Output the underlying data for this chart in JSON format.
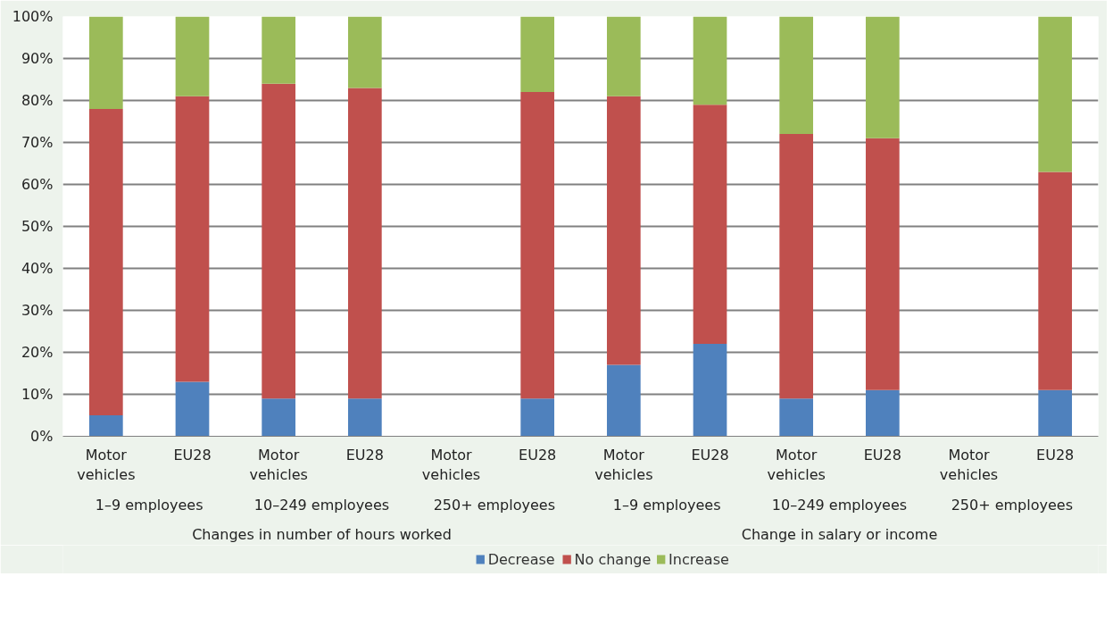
{
  "chart_data": {
    "type": "bar",
    "stacked": true,
    "categories": [
      "Motor vehicles",
      "EU28",
      "Motor vehicles",
      "EU28",
      "Motor vehicles",
      "EU28",
      "Motor vehicles",
      "EU28",
      "Motor vehicles",
      "EU28",
      "Motor vehicles",
      "EU28"
    ],
    "series": [
      {
        "name": "Decrease",
        "color": "#4f81bd",
        "values": [
          5,
          13,
          9,
          9,
          null,
          9,
          17,
          22,
          9,
          11,
          null,
          11
        ]
      },
      {
        "name": "No change",
        "color": "#c0504d",
        "values": [
          73,
          68,
          75,
          74,
          null,
          73,
          64,
          57,
          63,
          60,
          null,
          52
        ]
      },
      {
        "name": "Increase",
        "color": "#9bbb59",
        "values": [
          22,
          19,
          16,
          17,
          null,
          18,
          19,
          21,
          28,
          29,
          null,
          37
        ]
      }
    ],
    "annotations": [
      "1–9 employees",
      "10–249 employees",
      "250+ employees",
      "1–9 employees",
      "10–249 employees",
      "250+ employees",
      "Changes in number of hours worked",
      "Change in salary or income"
    ],
    "ylim": [
      0,
      100
    ],
    "yticks": [
      {
        "value": 0,
        "label": "0%"
      },
      {
        "value": 10,
        "label": "10%"
      },
      {
        "value": 20,
        "label": "20%"
      },
      {
        "value": 30,
        "label": "30%"
      },
      {
        "value": 40,
        "label": "40%"
      },
      {
        "value": 50,
        "label": "50%"
      },
      {
        "value": 60,
        "label": "60%"
      },
      {
        "value": 70,
        "label": "70%"
      },
      {
        "value": 80,
        "label": "80%"
      },
      {
        "value": 90,
        "label": "90%"
      },
      {
        "value": 100,
        "label": "100%"
      }
    ],
    "grid": "y",
    "legend": "bottom"
  }
}
